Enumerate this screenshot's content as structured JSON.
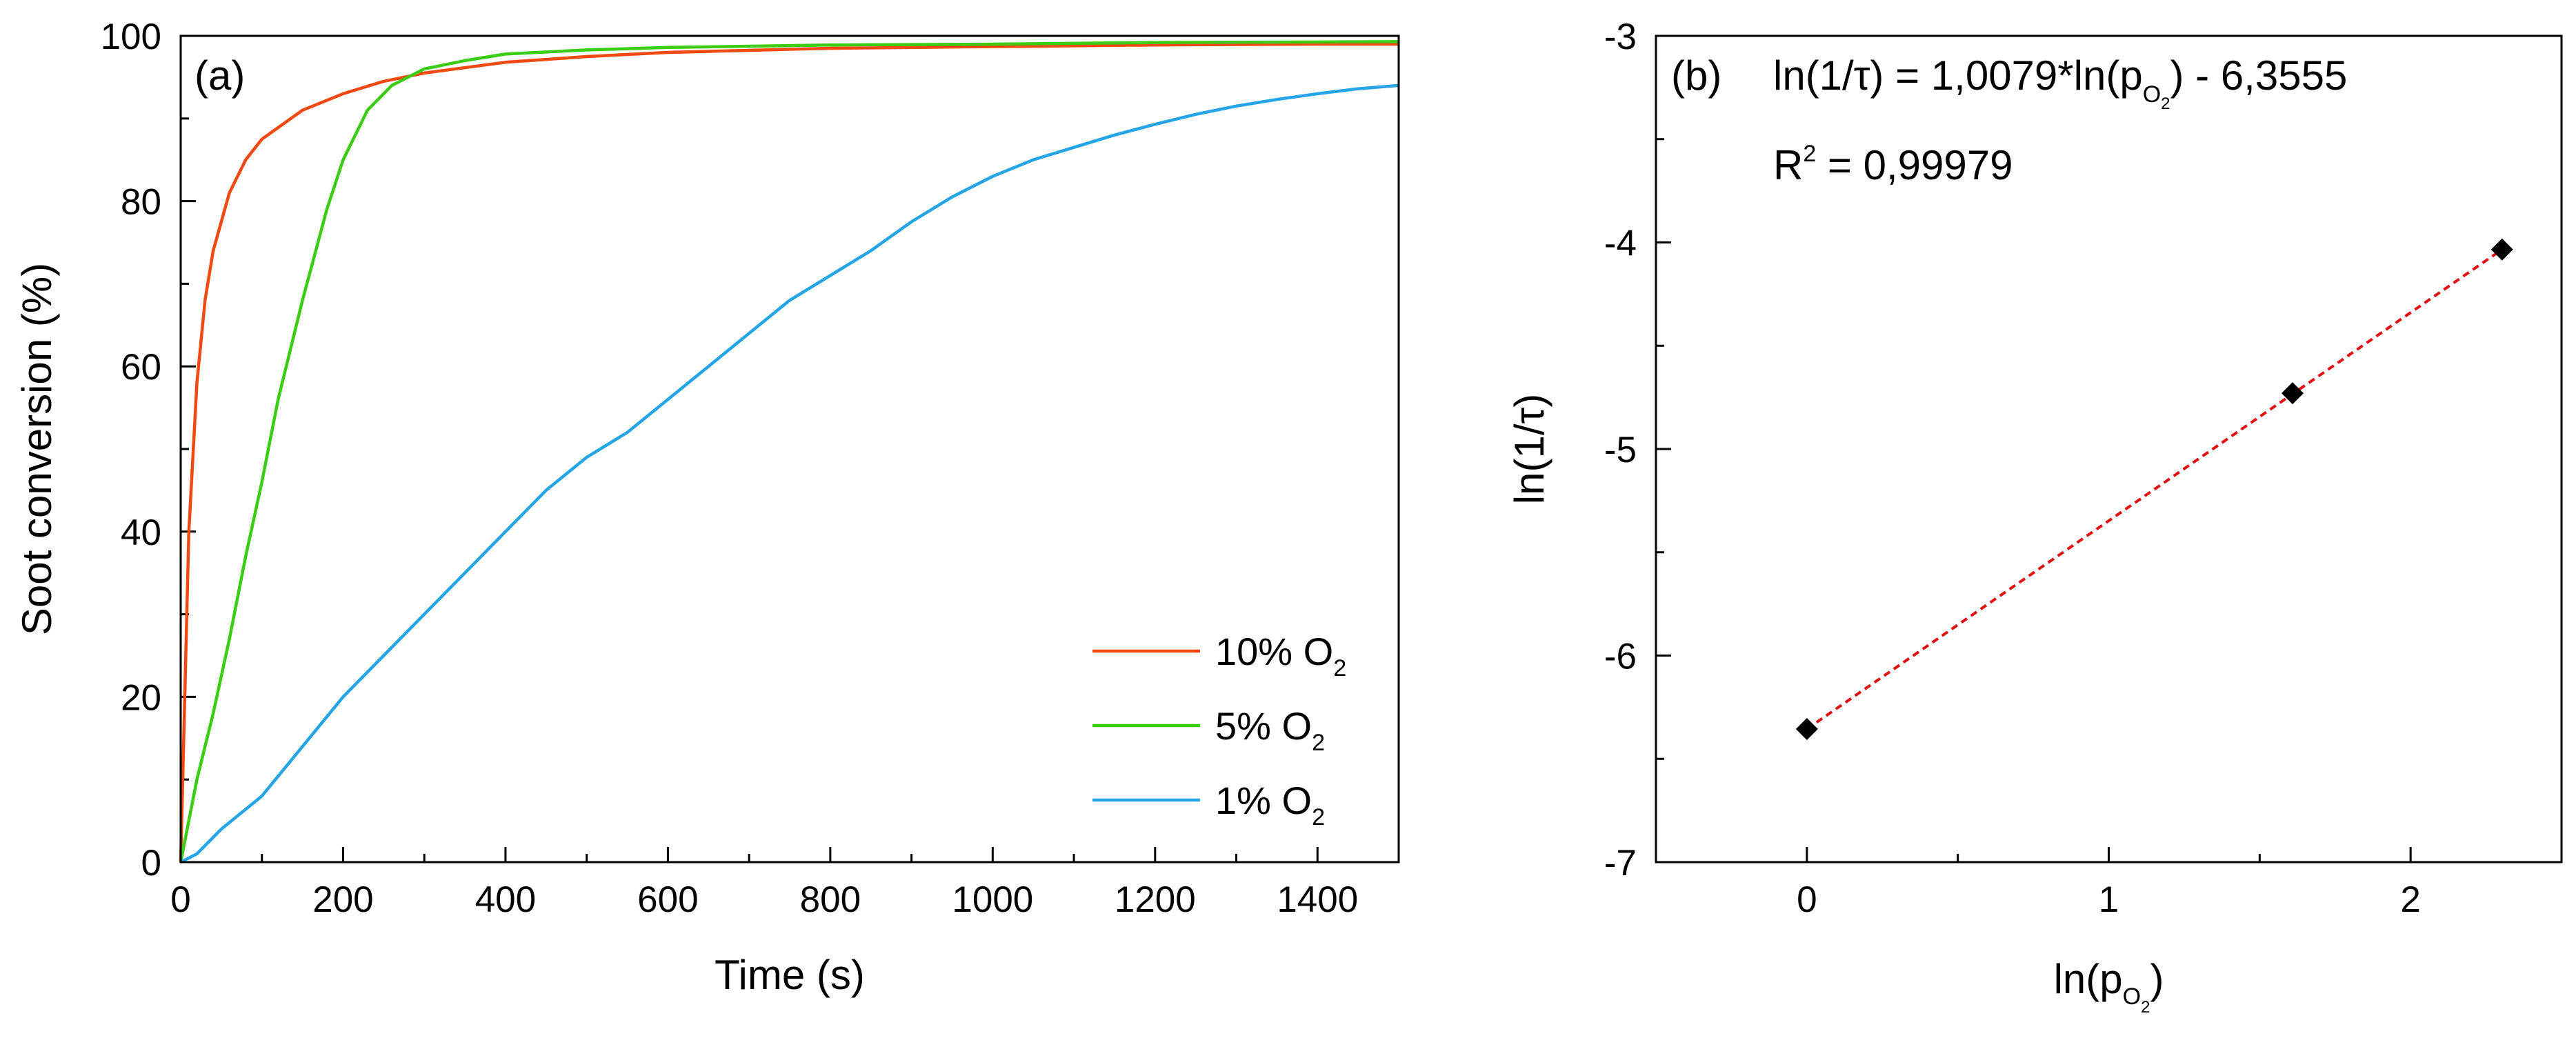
{
  "chart_data": [
    {
      "panel_label": "(a)",
      "type": "line",
      "xlabel": "Time (s)",
      "ylabel": "Soot conversion (%)",
      "xlim": [
        0,
        1500
      ],
      "ylim": [
        0,
        100
      ],
      "xticks": [
        0,
        200,
        400,
        600,
        800,
        1000,
        1200,
        1400
      ],
      "yticks": [
        0,
        20,
        40,
        60,
        80,
        100
      ],
      "legend_position": "bottom-right",
      "series": [
        {
          "name": "10% O2",
          "legend_text": "10% O",
          "legend_sub": "2",
          "color": "#f04a12",
          "x": [
            0,
            10,
            20,
            30,
            40,
            60,
            80,
            100,
            150,
            200,
            250,
            300,
            400,
            500,
            600,
            800,
            1000,
            1200,
            1400,
            1500
          ],
          "y": [
            0,
            40,
            58,
            68,
            74,
            81,
            85,
            87.5,
            91,
            93,
            94.5,
            95.5,
            96.8,
            97.5,
            98,
            98.5,
            98.7,
            98.9,
            99,
            99
          ]
        },
        {
          "name": "5% O2",
          "legend_text": "5% O",
          "legend_sub": "2",
          "color": "#3ccc14",
          "x": [
            0,
            20,
            40,
            60,
            80,
            100,
            120,
            150,
            180,
            200,
            230,
            260,
            300,
            350,
            400,
            500,
            600,
            800,
            1000,
            1200,
            1500
          ],
          "y": [
            0,
            10,
            18,
            27,
            37,
            46,
            56,
            68,
            79,
            85,
            91,
            94,
            96,
            97,
            97.8,
            98.3,
            98.6,
            98.9,
            99,
            99.2,
            99.3
          ]
        },
        {
          "name": "1% O2",
          "legend_text": "1% O",
          "legend_sub": "2",
          "color": "#26a5e6",
          "x": [
            0,
            20,
            50,
            100,
            150,
            200,
            250,
            300,
            350,
            400,
            450,
            500,
            550,
            600,
            650,
            700,
            750,
            800,
            850,
            900,
            950,
            1000,
            1050,
            1100,
            1150,
            1200,
            1250,
            1300,
            1350,
            1400,
            1450,
            1500
          ],
          "y": [
            0,
            1,
            4,
            8,
            14,
            20,
            25,
            30,
            35,
            40,
            45,
            49,
            52,
            56,
            60,
            64,
            68,
            71,
            74,
            77.5,
            80.5,
            83,
            85,
            86.5,
            88,
            89.3,
            90.5,
            91.5,
            92.3,
            93,
            93.6,
            94
          ]
        }
      ]
    },
    {
      "panel_label": "(b)",
      "type": "scatter",
      "xlabel": "ln(p",
      "xlabel_sub": "O",
      "xlabel_subsub": "2",
      "xlabel_end": ")",
      "ylabel": "ln(1/τ)",
      "xlim": [
        -0.5,
        2.5
      ],
      "ylim": [
        -7,
        -3
      ],
      "xticks": [
        0,
        1,
        2
      ],
      "yticks": [
        -7,
        -6,
        -5,
        -4,
        -3
      ],
      "points": {
        "x": [
          0,
          1.609,
          2.303
        ],
        "y": [
          -6.3555,
          -4.7301,
          -4.0341
        ]
      },
      "fit": {
        "slope": 1.0079,
        "intercept": -6.3555,
        "x_range": [
          0,
          2.303
        ],
        "color": "#e01010"
      },
      "marker_color": "#000000",
      "equation_prefix": "ln(1/τ) = 1,0079*ln(p",
      "equation_sub": "O",
      "equation_subsub": "2",
      "equation_suffix": ") - 6,3555",
      "r2_label": "R",
      "r2_sup": "2",
      "r2_value": " = 0,99979"
    }
  ]
}
